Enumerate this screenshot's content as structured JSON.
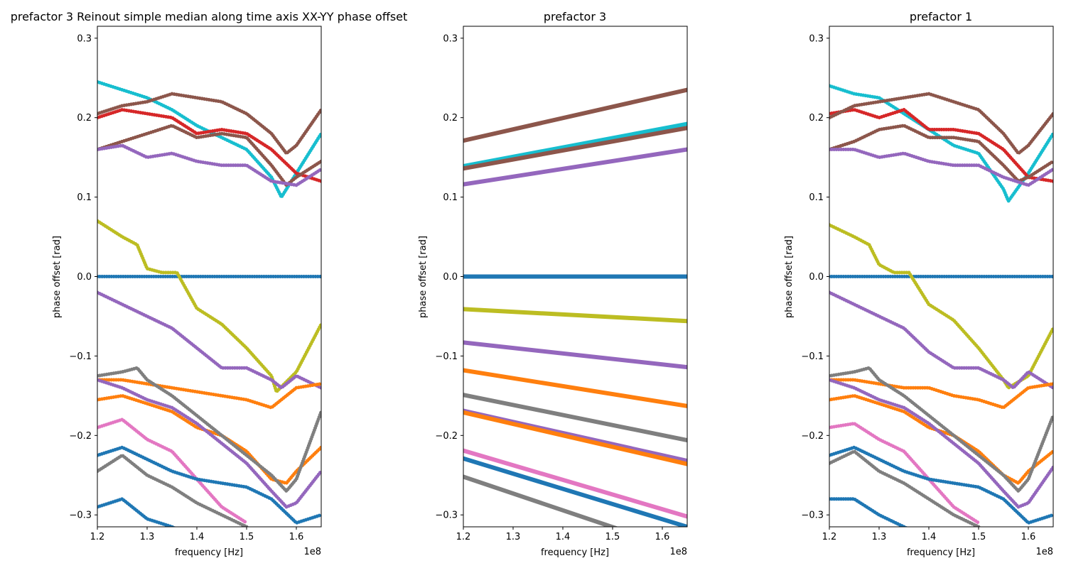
{
  "chart_data": [
    {
      "type": "scatter",
      "title": "prefactor 3 Reinout simple median along time axis XX-YY phase offset",
      "xlabel": "frequency [Hz]",
      "ylabel": "phase offset [rad]",
      "x_offset_label": "1e8",
      "xlim": [
        1.2,
        1.65
      ],
      "ylim": [
        -0.315,
        0.315
      ],
      "xticks": [
        "1.2",
        "1.3",
        "1.4",
        "1.5",
        "1.6"
      ],
      "yticks": [
        "−0.3",
        "−0.2",
        "−0.1",
        "0.0",
        "0.1",
        "0.2",
        "0.3"
      ],
      "grid": false,
      "series": [
        {
          "color": "#17becf",
          "x": [
            1.2,
            1.25,
            1.3,
            1.35,
            1.4,
            1.45,
            1.5,
            1.55,
            1.57,
            1.6,
            1.65
          ],
          "y": [
            0.245,
            0.235,
            0.225,
            0.21,
            0.19,
            0.175,
            0.16,
            0.125,
            0.1,
            0.13,
            0.18
          ]
        },
        {
          "color": "#d62728",
          "x": [
            1.2,
            1.25,
            1.3,
            1.35,
            1.4,
            1.45,
            1.5,
            1.55,
            1.6,
            1.65
          ],
          "y": [
            0.2,
            0.21,
            0.205,
            0.2,
            0.18,
            0.185,
            0.18,
            0.16,
            0.13,
            0.12
          ]
        },
        {
          "color": "#8c564b",
          "x": [
            1.2,
            1.25,
            1.3,
            1.35,
            1.4,
            1.45,
            1.5,
            1.55,
            1.58,
            1.6,
            1.65
          ],
          "y": [
            0.205,
            0.215,
            0.22,
            0.23,
            0.225,
            0.22,
            0.205,
            0.18,
            0.155,
            0.165,
            0.21
          ]
        },
        {
          "color": "#8c564b",
          "x": [
            1.2,
            1.25,
            1.3,
            1.35,
            1.4,
            1.45,
            1.5,
            1.55,
            1.58,
            1.6,
            1.65
          ],
          "y": [
            0.16,
            0.17,
            0.18,
            0.19,
            0.175,
            0.18,
            0.175,
            0.14,
            0.115,
            0.125,
            0.145
          ]
        },
        {
          "color": "#9467bd",
          "x": [
            1.2,
            1.25,
            1.3,
            1.35,
            1.4,
            1.45,
            1.5,
            1.55,
            1.6,
            1.65
          ],
          "y": [
            0.16,
            0.165,
            0.15,
            0.155,
            0.145,
            0.14,
            0.14,
            0.12,
            0.115,
            0.135
          ]
        },
        {
          "color": "#1f77b4",
          "x": [
            1.2,
            1.3,
            1.4,
            1.5,
            1.6,
            1.65
          ],
          "y": [
            0.0,
            0.0,
            0.0,
            0.0,
            0.0,
            0.0
          ]
        },
        {
          "color": "#bcbd22",
          "x": [
            1.2,
            1.25,
            1.28,
            1.3,
            1.33,
            1.36,
            1.4,
            1.45,
            1.5,
            1.55,
            1.56,
            1.6,
            1.65
          ],
          "y": [
            0.07,
            0.05,
            0.04,
            0.01,
            0.005,
            0.005,
            -0.04,
            -0.06,
            -0.09,
            -0.125,
            -0.145,
            -0.12,
            -0.06
          ]
        },
        {
          "color": "#9467bd",
          "x": [
            1.2,
            1.25,
            1.3,
            1.35,
            1.4,
            1.45,
            1.5,
            1.55,
            1.57,
            1.6,
            1.65
          ],
          "y": [
            -0.02,
            -0.035,
            -0.05,
            -0.065,
            -0.09,
            -0.115,
            -0.115,
            -0.13,
            -0.14,
            -0.125,
            -0.14
          ]
        },
        {
          "color": "#ff7f0e",
          "x": [
            1.2,
            1.25,
            1.3,
            1.35,
            1.4,
            1.45,
            1.5,
            1.55,
            1.6,
            1.65
          ],
          "y": [
            -0.13,
            -0.13,
            -0.135,
            -0.14,
            -0.145,
            -0.15,
            -0.155,
            -0.165,
            -0.14,
            -0.135
          ]
        },
        {
          "color": "#ff7f0e",
          "x": [
            1.2,
            1.25,
            1.3,
            1.35,
            1.4,
            1.45,
            1.5,
            1.55,
            1.58,
            1.6,
            1.65
          ],
          "y": [
            -0.155,
            -0.15,
            -0.16,
            -0.17,
            -0.19,
            -0.2,
            -0.22,
            -0.255,
            -0.26,
            -0.245,
            -0.215
          ]
        },
        {
          "color": "#7f7f7f",
          "x": [
            1.2,
            1.25,
            1.28,
            1.3,
            1.35,
            1.4,
            1.45,
            1.5,
            1.55,
            1.58,
            1.6,
            1.65
          ],
          "y": [
            -0.125,
            -0.12,
            -0.115,
            -0.13,
            -0.15,
            -0.175,
            -0.2,
            -0.225,
            -0.25,
            -0.27,
            -0.255,
            -0.17
          ]
        },
        {
          "color": "#9467bd",
          "x": [
            1.2,
            1.25,
            1.3,
            1.35,
            1.4,
            1.45,
            1.5,
            1.55,
            1.58,
            1.6,
            1.65
          ],
          "y": [
            -0.13,
            -0.14,
            -0.155,
            -0.165,
            -0.185,
            -0.21,
            -0.235,
            -0.27,
            -0.29,
            -0.285,
            -0.245
          ]
        },
        {
          "color": "#e377c2",
          "x": [
            1.2,
            1.25,
            1.3,
            1.35,
            1.4,
            1.45,
            1.5
          ],
          "y": [
            -0.19,
            -0.18,
            -0.205,
            -0.22,
            -0.255,
            -0.29,
            -0.31
          ]
        },
        {
          "color": "#1f77b4",
          "x": [
            1.2,
            1.25,
            1.3,
            1.35,
            1.4,
            1.45,
            1.5,
            1.55,
            1.6,
            1.65
          ],
          "y": [
            -0.225,
            -0.215,
            -0.23,
            -0.245,
            -0.255,
            -0.26,
            -0.265,
            -0.28,
            -0.31,
            -0.3
          ]
        },
        {
          "color": "#7f7f7f",
          "x": [
            1.2,
            1.25,
            1.3,
            1.35,
            1.4,
            1.45,
            1.5
          ],
          "y": [
            -0.245,
            -0.225,
            -0.25,
            -0.265,
            -0.285,
            -0.3,
            -0.315
          ]
        },
        {
          "color": "#1f77b4",
          "x": [
            1.2,
            1.25,
            1.3,
            1.35,
            1.4,
            1.45
          ],
          "y": [
            -0.29,
            -0.28,
            -0.305,
            -0.315,
            -0.33,
            -0.34
          ]
        }
      ]
    },
    {
      "type": "scatter",
      "title": "prefactor 3",
      "xlabel": "frequency [Hz]",
      "ylabel": "phase offset [rad]",
      "x_offset_label": "1e8",
      "xlim": [
        1.2,
        1.65
      ],
      "ylim": [
        -0.315,
        0.315
      ],
      "xticks": [
        "1.2",
        "1.3",
        "1.4",
        "1.5",
        "1.6"
      ],
      "yticks": [
        "−0.3",
        "−0.2",
        "−0.1",
        "0.0",
        "0.1",
        "0.2",
        "0.3"
      ],
      "grid": false,
      "series": [
        {
          "color": "#8c564b",
          "x": [
            1.2,
            1.65
          ],
          "y": [
            0.171,
            0.235
          ]
        },
        {
          "color": "#17becf",
          "x": [
            1.2,
            1.65
          ],
          "y": [
            0.139,
            0.192
          ]
        },
        {
          "color": "#8c564b",
          "x": [
            1.2,
            1.65
          ],
          "y": [
            0.136,
            0.187
          ]
        },
        {
          "color": "#9467bd",
          "x": [
            1.2,
            1.65
          ],
          "y": [
            0.116,
            0.16
          ]
        },
        {
          "color": "#1f77b4",
          "x": [
            1.2,
            1.65
          ],
          "y": [
            0.0,
            0.0
          ]
        },
        {
          "color": "#bcbd22",
          "x": [
            1.2,
            1.65
          ],
          "y": [
            -0.041,
            -0.056
          ]
        },
        {
          "color": "#9467bd",
          "x": [
            1.2,
            1.65
          ],
          "y": [
            -0.083,
            -0.114
          ]
        },
        {
          "color": "#ff7f0e",
          "x": [
            1.2,
            1.65
          ],
          "y": [
            -0.118,
            -0.163
          ]
        },
        {
          "color": "#7f7f7f",
          "x": [
            1.2,
            1.65
          ],
          "y": [
            -0.149,
            -0.206
          ]
        },
        {
          "color": "#9467bd",
          "x": [
            1.2,
            1.65
          ],
          "y": [
            -0.169,
            -0.232
          ]
        },
        {
          "color": "#ff7f0e",
          "x": [
            1.2,
            1.65
          ],
          "y": [
            -0.171,
            -0.236
          ]
        },
        {
          "color": "#e377c2",
          "x": [
            1.2,
            1.65
          ],
          "y": [
            -0.219,
            -0.302
          ]
        },
        {
          "color": "#1f77b4",
          "x": [
            1.2,
            1.65
          ],
          "y": [
            -0.229,
            -0.315
          ]
        },
        {
          "color": "#7f7f7f",
          "x": [
            1.2,
            1.65
          ],
          "y": [
            -0.252,
            -0.347
          ]
        }
      ]
    },
    {
      "type": "scatter",
      "title": "prefactor 1",
      "xlabel": "frequency [Hz]",
      "ylabel": "phase offset [rad]",
      "x_offset_label": "1e8",
      "xlim": [
        1.2,
        1.65
      ],
      "ylim": [
        -0.315,
        0.315
      ],
      "xticks": [
        "1.2",
        "1.3",
        "1.4",
        "1.5",
        "1.6"
      ],
      "yticks": [
        "−0.3",
        "−0.2",
        "−0.1",
        "0.0",
        "0.1",
        "0.2",
        "0.3"
      ],
      "grid": false,
      "series": [
        {
          "color": "#17becf",
          "x": [
            1.2,
            1.25,
            1.3,
            1.35,
            1.4,
            1.45,
            1.5,
            1.55,
            1.56,
            1.6,
            1.65
          ],
          "y": [
            0.24,
            0.23,
            0.225,
            0.205,
            0.185,
            0.165,
            0.155,
            0.11,
            0.095,
            0.13,
            0.18
          ]
        },
        {
          "color": "#d62728",
          "x": [
            1.2,
            1.25,
            1.3,
            1.35,
            1.4,
            1.45,
            1.5,
            1.55,
            1.6,
            1.65
          ],
          "y": [
            0.205,
            0.21,
            0.2,
            0.21,
            0.185,
            0.185,
            0.18,
            0.16,
            0.125,
            0.12
          ]
        },
        {
          "color": "#8c564b",
          "x": [
            1.2,
            1.25,
            1.3,
            1.35,
            1.4,
            1.45,
            1.5,
            1.55,
            1.58,
            1.6,
            1.65
          ],
          "y": [
            0.2,
            0.215,
            0.22,
            0.225,
            0.23,
            0.22,
            0.21,
            0.18,
            0.155,
            0.165,
            0.205
          ]
        },
        {
          "color": "#8c564b",
          "x": [
            1.2,
            1.25,
            1.3,
            1.35,
            1.4,
            1.45,
            1.5,
            1.55,
            1.58,
            1.6,
            1.65
          ],
          "y": [
            0.16,
            0.17,
            0.185,
            0.19,
            0.175,
            0.175,
            0.17,
            0.14,
            0.12,
            0.125,
            0.145
          ]
        },
        {
          "color": "#9467bd",
          "x": [
            1.2,
            1.25,
            1.3,
            1.35,
            1.4,
            1.45,
            1.5,
            1.55,
            1.6,
            1.65
          ],
          "y": [
            0.16,
            0.16,
            0.15,
            0.155,
            0.145,
            0.14,
            0.14,
            0.125,
            0.115,
            0.135
          ]
        },
        {
          "color": "#1f77b4",
          "x": [
            1.2,
            1.3,
            1.4,
            1.5,
            1.6,
            1.65
          ],
          "y": [
            0.0,
            0.0,
            0.0,
            0.0,
            0.0,
            0.0
          ]
        },
        {
          "color": "#bcbd22",
          "x": [
            1.2,
            1.25,
            1.28,
            1.3,
            1.33,
            1.36,
            1.4,
            1.45,
            1.5,
            1.55,
            1.56,
            1.6,
            1.65
          ],
          "y": [
            0.065,
            0.05,
            0.04,
            0.015,
            0.005,
            0.005,
            -0.035,
            -0.055,
            -0.09,
            -0.13,
            -0.14,
            -0.125,
            -0.065
          ]
        },
        {
          "color": "#9467bd",
          "x": [
            1.2,
            1.25,
            1.3,
            1.35,
            1.4,
            1.45,
            1.5,
            1.55,
            1.57,
            1.6,
            1.65
          ],
          "y": [
            -0.02,
            -0.035,
            -0.05,
            -0.065,
            -0.095,
            -0.115,
            -0.115,
            -0.13,
            -0.14,
            -0.12,
            -0.14
          ]
        },
        {
          "color": "#ff7f0e",
          "x": [
            1.2,
            1.25,
            1.3,
            1.35,
            1.4,
            1.45,
            1.5,
            1.55,
            1.6,
            1.65
          ],
          "y": [
            -0.13,
            -0.13,
            -0.135,
            -0.14,
            -0.14,
            -0.15,
            -0.155,
            -0.165,
            -0.14,
            -0.135
          ]
        },
        {
          "color": "#ff7f0e",
          "x": [
            1.2,
            1.25,
            1.3,
            1.35,
            1.4,
            1.45,
            1.5,
            1.55,
            1.58,
            1.6,
            1.65
          ],
          "y": [
            -0.155,
            -0.15,
            -0.16,
            -0.17,
            -0.19,
            -0.2,
            -0.22,
            -0.25,
            -0.26,
            -0.245,
            -0.22
          ]
        },
        {
          "color": "#7f7f7f",
          "x": [
            1.2,
            1.25,
            1.28,
            1.3,
            1.35,
            1.4,
            1.45,
            1.5,
            1.55,
            1.58,
            1.6,
            1.65
          ],
          "y": [
            -0.125,
            -0.12,
            -0.115,
            -0.13,
            -0.15,
            -0.175,
            -0.2,
            -0.225,
            -0.25,
            -0.27,
            -0.255,
            -0.175
          ]
        },
        {
          "color": "#9467bd",
          "x": [
            1.2,
            1.25,
            1.3,
            1.35,
            1.4,
            1.45,
            1.5,
            1.55,
            1.58,
            1.6,
            1.65
          ],
          "y": [
            -0.13,
            -0.14,
            -0.155,
            -0.165,
            -0.185,
            -0.21,
            -0.235,
            -0.27,
            -0.29,
            -0.285,
            -0.24
          ]
        },
        {
          "color": "#e377c2",
          "x": [
            1.2,
            1.25,
            1.3,
            1.35,
            1.4,
            1.45,
            1.5
          ],
          "y": [
            -0.19,
            -0.185,
            -0.205,
            -0.22,
            -0.255,
            -0.29,
            -0.31
          ]
        },
        {
          "color": "#1f77b4",
          "x": [
            1.2,
            1.25,
            1.3,
            1.35,
            1.4,
            1.45,
            1.5,
            1.55,
            1.6,
            1.65
          ],
          "y": [
            -0.225,
            -0.215,
            -0.23,
            -0.245,
            -0.255,
            -0.26,
            -0.265,
            -0.28,
            -0.31,
            -0.3
          ]
        },
        {
          "color": "#7f7f7f",
          "x": [
            1.2,
            1.25,
            1.3,
            1.35,
            1.4,
            1.45,
            1.5
          ],
          "y": [
            -0.235,
            -0.22,
            -0.245,
            -0.26,
            -0.28,
            -0.3,
            -0.315
          ]
        },
        {
          "color": "#1f77b4",
          "x": [
            1.2,
            1.25,
            1.3,
            1.35,
            1.4,
            1.45
          ],
          "y": [
            -0.28,
            -0.28,
            -0.3,
            -0.315,
            -0.33,
            -0.34
          ]
        }
      ]
    }
  ]
}
